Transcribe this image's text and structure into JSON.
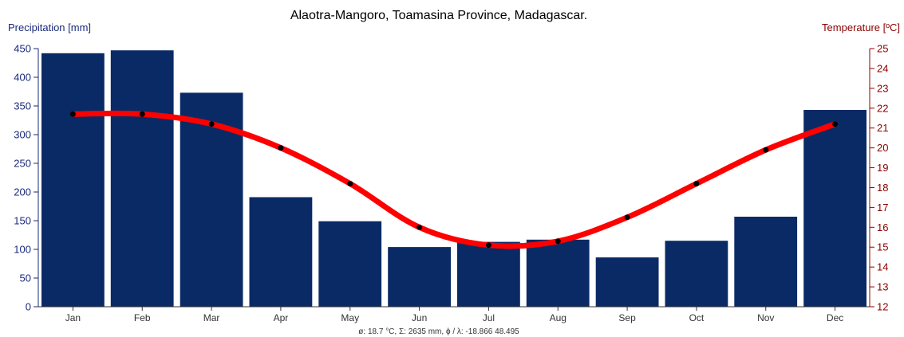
{
  "chart_data": {
    "type": "bar",
    "title": "Alaotra-Mangoro, Toamasina Province, Madagascar.",
    "ylabel_left": "Precipitation [mm]",
    "ylabel_right": "Temperature [ºC]",
    "categories": [
      "Jan",
      "Feb",
      "Mar",
      "Apr",
      "May",
      "Jun",
      "Jul",
      "Aug",
      "Sep",
      "Oct",
      "Nov",
      "Dec"
    ],
    "series": [
      {
        "name": "",
        "type": "bar",
        "axis": "left",
        "color": "#0a2a66",
        "values": [
          442,
          447,
          373,
          191,
          149,
          104,
          113,
          117,
          86,
          115,
          157,
          343
        ]
      },
      {
        "name": "",
        "type": "line",
        "axis": "right",
        "color": "#ff0000",
        "values": [
          21.7,
          21.7,
          21.2,
          20.0,
          18.2,
          16.0,
          15.1,
          15.3,
          16.5,
          18.2,
          19.9,
          21.2
        ]
      }
    ],
    "ylim_left": [
      0,
      450
    ],
    "yticks_left": [
      0,
      50,
      100,
      150,
      200,
      250,
      300,
      350,
      400,
      450
    ],
    "ylim_right": [
      12,
      25
    ],
    "yticks_right": [
      12,
      13,
      14,
      15,
      16,
      17,
      18,
      19,
      20,
      21,
      22,
      23,
      24,
      25
    ],
    "grid": false,
    "footer": "ø: 18.7 °C, Σ: 2635 mm, ϕ / λ: -18.866 48.495"
  }
}
